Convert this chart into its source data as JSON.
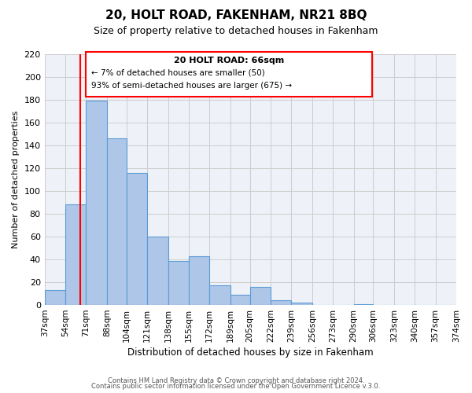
{
  "title": "20, HOLT ROAD, FAKENHAM, NR21 8BQ",
  "subtitle": "Size of property relative to detached houses in Fakenham",
  "xlabel": "Distribution of detached houses by size in Fakenham",
  "ylabel": "Number of detached properties",
  "bar_values": [
    13,
    88,
    179,
    146,
    116,
    60,
    39,
    43,
    17,
    9,
    16,
    4,
    2,
    0,
    0,
    1,
    0,
    0,
    0,
    0
  ],
  "bin_edges": [
    37,
    54,
    71,
    88,
    104,
    121,
    138,
    155,
    172,
    189,
    205,
    222,
    239,
    256,
    273,
    290,
    306,
    323,
    340,
    357,
    374
  ],
  "bin_labels": [
    "37sqm",
    "54sqm",
    "71sqm",
    "88sqm",
    "104sqm",
    "121sqm",
    "138sqm",
    "155sqm",
    "172sqm",
    "189sqm",
    "205sqm",
    "222sqm",
    "239sqm",
    "256sqm",
    "273sqm",
    "290sqm",
    "306sqm",
    "323sqm",
    "340sqm",
    "357sqm",
    "374sqm"
  ],
  "bar_color": "#aec6e8",
  "bar_edge_color": "#5b9bd5",
  "grid_color": "#cccccc",
  "bg_color": "#eef2f8",
  "red_line_x": 66,
  "annotation_title": "20 HOLT ROAD: 66sqm",
  "annotation_line1": "← 7% of detached houses are smaller (50)",
  "annotation_line2": "93% of semi-detached houses are larger (675) →",
  "ylim": [
    0,
    220
  ],
  "yticks": [
    0,
    20,
    40,
    60,
    80,
    100,
    120,
    140,
    160,
    180,
    200,
    220
  ],
  "footer1": "Contains HM Land Registry data © Crown copyright and database right 2024.",
  "footer2": "Contains public sector information licensed under the Open Government Licence v.3.0."
}
